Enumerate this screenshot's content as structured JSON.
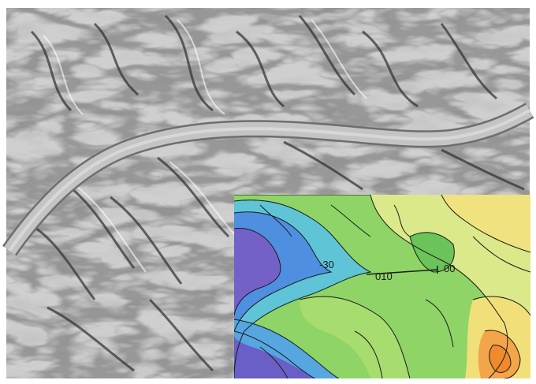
{
  "map": {
    "contour_labels": [
      "-30",
      "010",
      "00"
    ],
    "layers": [
      "hillshade-terrain",
      "elevation-contour-inset"
    ],
    "colors": {
      "hillshade_light": "#d9d9d9",
      "hillshade_dark": "#3a3a3a",
      "road": "#bdbdbd",
      "elev_low": "#7a63c9",
      "elev_mid_low": "#5aa9e6",
      "elev_mid": "#7fd67a",
      "elev_mid_high": "#b9e07a",
      "elev_high": "#f4e07a",
      "elev_peak": "#f39a3b"
    }
  }
}
